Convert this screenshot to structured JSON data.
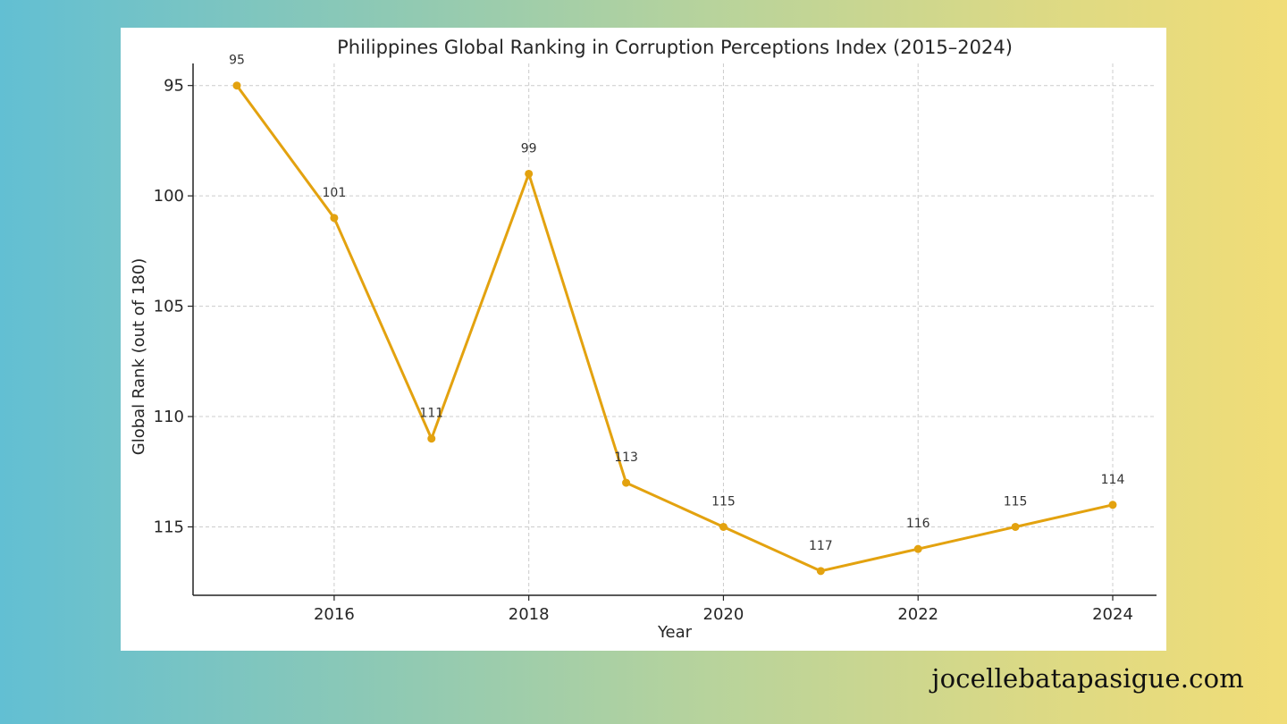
{
  "site": {
    "credit": "jocellebatapasigue.com"
  },
  "colors": {
    "line": "#e3a20f",
    "background_start": "#62bfd3",
    "background_end": "#f1dd77"
  },
  "chart_data": {
    "type": "line",
    "title": "Philippines Global Ranking in Corruption Perceptions Index (2015–2024)",
    "xlabel": "Year",
    "ylabel": "Global Rank (out of 180)",
    "x": [
      2015,
      2016,
      2017,
      2018,
      2019,
      2020,
      2021,
      2022,
      2023,
      2024
    ],
    "series": [
      {
        "values": [
          95,
          101,
          111,
          99,
          113,
          115,
          117,
          116,
          115,
          114
        ]
      }
    ],
    "data_labels": [
      "95",
      "101",
      "111",
      "99",
      "113",
      "115",
      "117",
      "116",
      "115",
      "114"
    ],
    "x_ticks": [
      2016,
      2018,
      2020,
      2022,
      2024
    ],
    "y_ticks": [
      95,
      100,
      105,
      110,
      115
    ],
    "xlim": [
      2014.55,
      2024.45
    ],
    "ylim": [
      94,
      118.1
    ],
    "y_inverted": true,
    "grid": true,
    "legend": "none"
  }
}
